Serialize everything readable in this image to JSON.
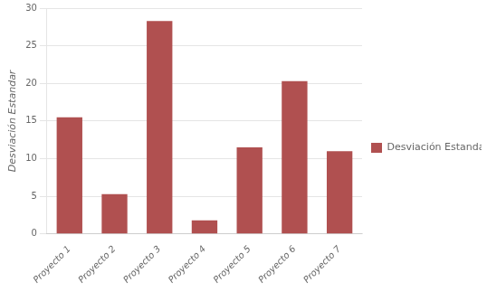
{
  "chart_data": {
    "type": "bar",
    "categories": [
      "Proyecto 1",
      "Proyecto 2",
      "Proyecto 3",
      "Proyecto 4",
      "Proyecto 5",
      "Proyecto 6",
      "Proyecto 7"
    ],
    "series": [
      {
        "name": "Desviación Estandar",
        "color": "#B05050",
        "values": [
          15.5,
          5.3,
          28.3,
          1.8,
          11.5,
          20.3,
          11.0
        ]
      }
    ],
    "ylabel": "Desviación Estandar",
    "ylim": [
      0,
      30
    ],
    "yticks": [
      0,
      5,
      10,
      15,
      20,
      25,
      30
    ],
    "grid": true,
    "legend": "right"
  }
}
